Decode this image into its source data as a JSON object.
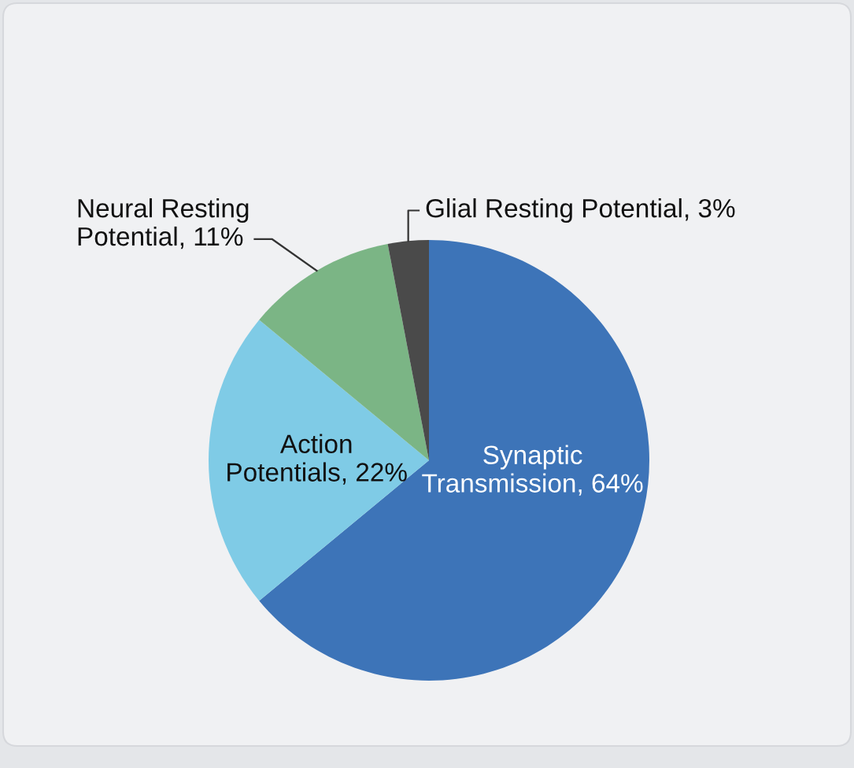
{
  "chart_data": {
    "type": "pie",
    "categories": [
      "Synaptic Transmission",
      "Action Potentials",
      "Neural Resting Potential",
      "Glial Resting Potential"
    ],
    "values": [
      64,
      22,
      11,
      3
    ],
    "value_labels": [
      "64%",
      "22%",
      "11%",
      "3%"
    ],
    "colors": [
      "#3d74b8",
      "#7fcbe6",
      "#7bb585",
      "#4a4a4a"
    ]
  }
}
